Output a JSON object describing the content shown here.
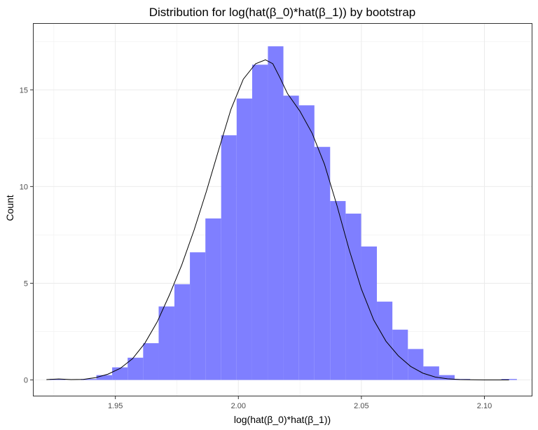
{
  "chart_data": {
    "type": "bar",
    "title": "Distribution for log(hat(β_0)*hat(β_1)) by bootstrap",
    "xlabel": "log(hat(β_0)*hat(β_1))",
    "ylabel": "Count",
    "xlim": [
      1.9165,
      2.1195
    ],
    "ylim": [
      -0.85,
      18.45
    ],
    "x_ticks": [
      1.95,
      2.0,
      2.05,
      2.1
    ],
    "x_tick_labels": [
      "1.95",
      "2.00",
      "2.05",
      "2.10"
    ],
    "y_ticks": [
      0,
      5,
      10,
      15
    ],
    "y_tick_labels": [
      "0",
      "5",
      "10",
      "15"
    ],
    "grid": true,
    "bar_color": "#7f7fff",
    "density_color": "#000000",
    "histogram": {
      "bins": [
        {
          "x0": 1.9233,
          "x1": 1.9297,
          "count": 0.05
        },
        {
          "x0": 1.9297,
          "x1": 1.936,
          "count": 0.0
        },
        {
          "x0": 1.936,
          "x1": 1.9423,
          "count": 0.05
        },
        {
          "x0": 1.9423,
          "x1": 1.9487,
          "count": 0.25
        },
        {
          "x0": 1.9487,
          "x1": 1.955,
          "count": 0.65
        },
        {
          "x0": 1.955,
          "x1": 1.9613,
          "count": 1.15
        },
        {
          "x0": 1.9613,
          "x1": 1.9676,
          "count": 1.9
        },
        {
          "x0": 1.9676,
          "x1": 1.974,
          "count": 3.8
        },
        {
          "x0": 1.974,
          "x1": 1.9803,
          "count": 4.95
        },
        {
          "x0": 1.9803,
          "x1": 1.9866,
          "count": 6.6
        },
        {
          "x0": 1.9866,
          "x1": 1.993,
          "count": 8.35
        },
        {
          "x0": 1.993,
          "x1": 1.9993,
          "count": 12.65
        },
        {
          "x0": 1.9993,
          "x1": 2.0056,
          "count": 14.55
        },
        {
          "x0": 2.0056,
          "x1": 2.012,
          "count": 16.3
        },
        {
          "x0": 2.012,
          "x1": 2.0183,
          "count": 17.25
        },
        {
          "x0": 2.0183,
          "x1": 2.0246,
          "count": 14.7
        },
        {
          "x0": 2.0246,
          "x1": 2.0309,
          "count": 14.2
        },
        {
          "x0": 2.0309,
          "x1": 2.0373,
          "count": 12.05
        },
        {
          "x0": 2.0373,
          "x1": 2.0436,
          "count": 9.25
        },
        {
          "x0": 2.0436,
          "x1": 2.0499,
          "count": 8.6
        },
        {
          "x0": 2.0499,
          "x1": 2.0563,
          "count": 6.9
        },
        {
          "x0": 2.0563,
          "x1": 2.0626,
          "count": 4.05
        },
        {
          "x0": 2.0626,
          "x1": 2.0689,
          "count": 2.6
        },
        {
          "x0": 2.0689,
          "x1": 2.0752,
          "count": 1.6
        },
        {
          "x0": 2.0752,
          "x1": 2.0816,
          "count": 0.7
        },
        {
          "x0": 2.0816,
          "x1": 2.0879,
          "count": 0.25
        },
        {
          "x0": 2.0879,
          "x1": 2.0942,
          "count": 0.05
        },
        {
          "x0": 2.0942,
          "x1": 2.1006,
          "count": 0.0
        },
        {
          "x0": 2.1006,
          "x1": 2.1069,
          "count": 0.0
        },
        {
          "x0": 2.1069,
          "x1": 2.1132,
          "count": 0.05
        }
      ]
    },
    "density_curve": {
      "x": [
        1.922,
        1.927,
        1.932,
        1.937,
        1.942,
        1.947,
        1.952,
        1.957,
        1.962,
        1.967,
        1.972,
        1.977,
        1.982,
        1.987,
        1.992,
        1.997,
        2.002,
        2.007,
        2.011,
        2.014,
        2.017,
        2.02,
        2.025,
        2.03,
        2.035,
        2.04,
        2.045,
        2.05,
        2.055,
        2.06,
        2.065,
        2.07,
        2.075,
        2.08,
        2.085,
        2.09,
        2.095,
        2.1,
        2.105,
        2.11
      ],
      "y": [
        0.02,
        0.05,
        0.02,
        0.03,
        0.12,
        0.3,
        0.6,
        1.1,
        1.9,
        3.0,
        4.4,
        5.95,
        7.75,
        9.75,
        11.9,
        14.0,
        15.55,
        16.35,
        16.55,
        16.35,
        15.6,
        14.8,
        13.9,
        12.75,
        11.15,
        9.05,
        6.75,
        4.7,
        3.1,
        2.0,
        1.25,
        0.7,
        0.35,
        0.15,
        0.06,
        0.02,
        0.01,
        0.0,
        0.0,
        0.0
      ]
    }
  }
}
